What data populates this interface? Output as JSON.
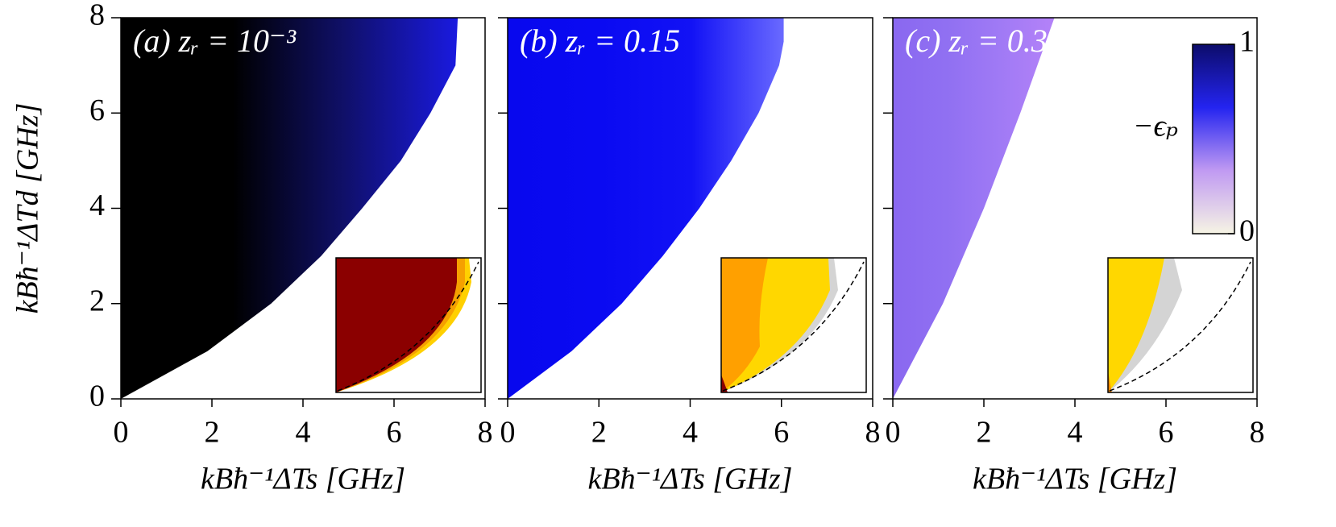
{
  "chart_data": [
    {
      "type": "area",
      "title": "(a) zᵣ = 10⁻³",
      "x_label": "kBħ⁻¹ΔTs [GHz]",
      "y_label": "kBħ⁻¹ΔTd [GHz]",
      "x": [
        0,
        1.9,
        3.3,
        4.4,
        5.3,
        6.15,
        6.8,
        7.35,
        7.4
      ],
      "y": [
        0,
        1,
        2,
        3,
        4,
        5,
        6,
        7,
        8
      ],
      "colors": [
        "#000000",
        "#000000",
        "#10106a",
        "#1a1ae0"
      ],
      "xlim": [
        0,
        8
      ],
      "ylim": [
        0,
        8
      ],
      "xticks": [
        0,
        2,
        4,
        6,
        8
      ],
      "yticks": [
        0,
        2,
        4,
        6,
        8
      ]
    },
    {
      "type": "area",
      "title": "(b) zᵣ = 0.15",
      "x_label": "kBħ⁻¹ΔTs [GHz]",
      "x": [
        0,
        1.4,
        2.5,
        3.4,
        4.2,
        4.9,
        5.5,
        5.95,
        6.05,
        6.05
      ],
      "y": [
        0,
        1,
        2,
        3,
        4,
        5,
        6,
        7,
        7.5,
        8
      ],
      "colors": [
        "#0808ee",
        "#0a0af2",
        "#1212f5",
        "#6a6aff"
      ],
      "xlim": [
        0,
        8
      ],
      "ylim": [
        0,
        8
      ],
      "xticks": [
        0,
        2,
        4,
        6,
        8
      ],
      "yticks": [
        0,
        2,
        4,
        6,
        8
      ]
    },
    {
      "type": "area",
      "title": "(c) zᵣ = 0.3",
      "x_label": "kBħ⁻¹ΔTs [GHz]",
      "x": [
        0,
        1.1,
        2.0,
        2.8,
        3.55
      ],
      "y": [
        0,
        2,
        4,
        6,
        8
      ],
      "colors": [
        "#8a68f0",
        "#9070f2",
        "#a07af5",
        "#b482f8"
      ],
      "xlim": [
        0,
        8
      ],
      "ylim": [
        0,
        8
      ],
      "xticks": [
        0,
        2,
        4,
        6,
        8
      ],
      "yticks": [
        0,
        2,
        4,
        6,
        8
      ],
      "colorbar": {
        "label": "−ϵₚ",
        "lim": [
          0,
          1
        ],
        "ticks": [
          0,
          1
        ],
        "colors": [
          "#f6f4e4",
          "#c09af2",
          "#2424f0",
          "#0c0c6a"
        ]
      }
    }
  ]
}
